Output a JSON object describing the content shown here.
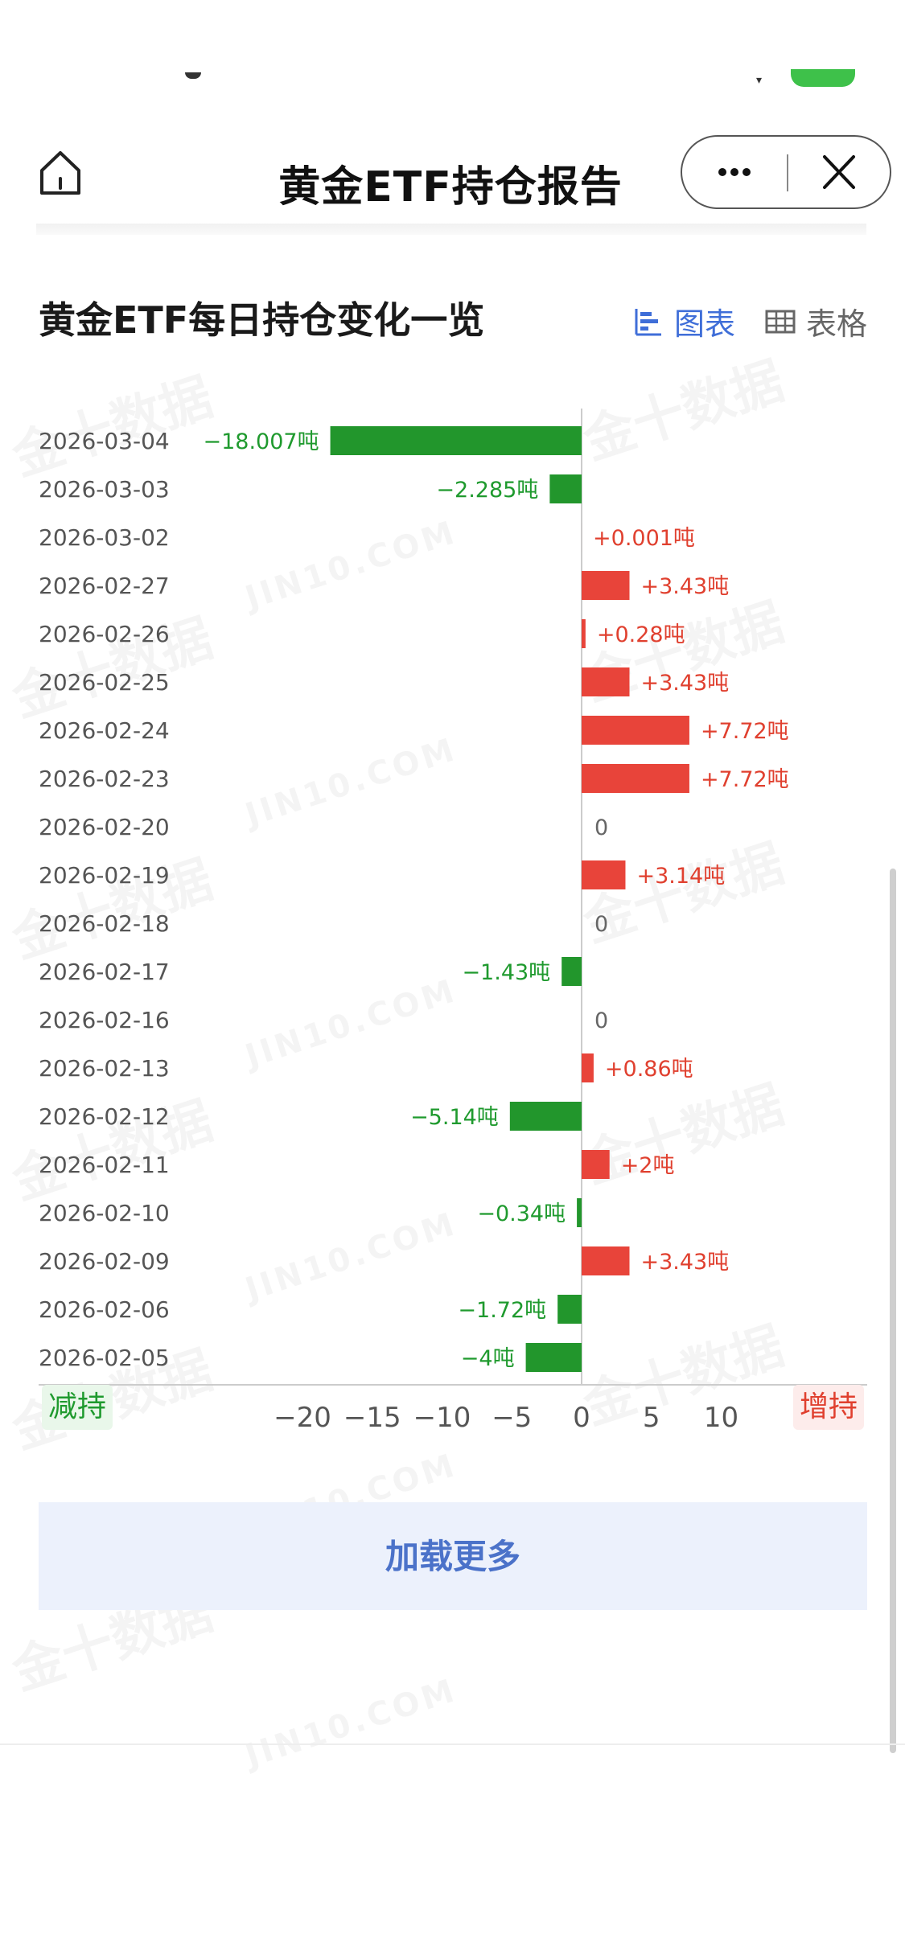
{
  "nav": {
    "title": "黄金ETF持仓报告",
    "more_icon": "more-dots-icon",
    "close_icon": "close-icon",
    "home_icon": "home-icon"
  },
  "section": {
    "title": "黄金ETF每日持仓变化一览",
    "chart_tab": "图表",
    "table_tab": "表格"
  },
  "watermark": {
    "cn": "金十数据",
    "en": "JIN10.COM"
  },
  "colors": {
    "increase": "#e8443a",
    "decrease": "#22962c",
    "accent": "#3f6ed8"
  },
  "chart_data": {
    "type": "bar",
    "orientation": "horizontal",
    "unit": "吨",
    "categories": [
      "2026-03-04",
      "2026-03-03",
      "2026-03-02",
      "2026-02-27",
      "2026-02-26",
      "2026-02-25",
      "2026-02-24",
      "2026-02-23",
      "2026-02-20",
      "2026-02-19",
      "2026-02-18",
      "2026-02-17",
      "2026-02-16",
      "2026-02-13",
      "2026-02-12",
      "2026-02-11",
      "2026-02-10",
      "2026-02-09",
      "2026-02-06",
      "2026-02-05"
    ],
    "values": [
      -18.007,
      -2.285,
      0.001,
      3.43,
      0.28,
      3.43,
      7.72,
      7.72,
      0,
      3.14,
      0,
      -1.43,
      0,
      0.86,
      -5.14,
      2,
      -0.34,
      3.43,
      -1.72,
      -4
    ],
    "labels": [
      "−18.007吨",
      "−2.285吨",
      "+0.001吨",
      "+3.43吨",
      "+0.28吨",
      "+3.43吨",
      "+7.72吨",
      "+7.72吨",
      "0",
      "+3.14吨",
      "0",
      "−1.43吨",
      "0",
      "+0.86吨",
      "−5.14吨",
      "+2吨",
      "−0.34吨",
      "+3.43吨",
      "−1.72吨",
      "−4吨"
    ],
    "xticks": [
      -20,
      -15,
      -10,
      -5,
      0,
      5,
      10
    ],
    "xtick_labels": [
      "−20",
      "−15",
      "−10",
      "−5",
      "0",
      "5",
      "10"
    ],
    "xlim": [
      -22.5,
      13
    ]
  },
  "legend": {
    "reduce": "减持",
    "increase": "增持"
  },
  "actions": {
    "load_more": "加载更多"
  }
}
